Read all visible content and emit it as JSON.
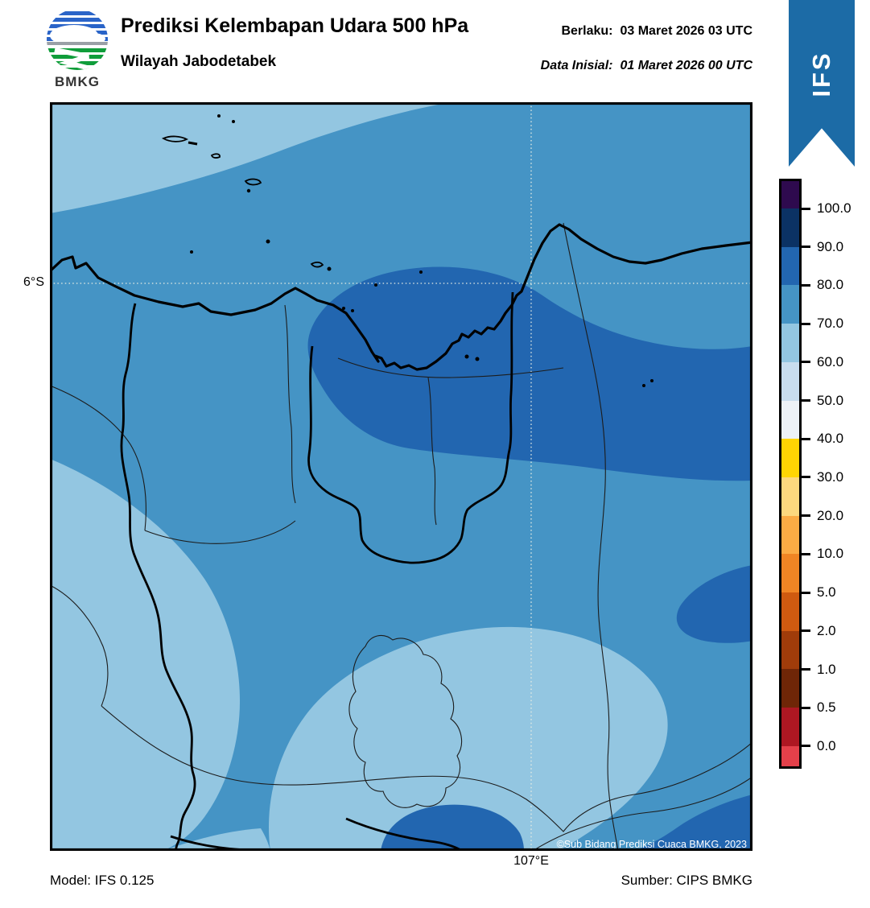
{
  "header": {
    "logo_text": "BMKG",
    "title": "Prediksi Kelembapan Udara 500 hPa",
    "subtitle": "Wilayah Jabodetabek",
    "valid_label": "Berlaku:",
    "valid_value": "03 Maret 2026 03 UTC",
    "init_label": "Data Inisial:",
    "init_value": "01 Maret 2026 00 UTC",
    "ribbon_tag": "IFS",
    "ribbon_color": "#1c6ba6"
  },
  "map": {
    "lat_label": "6°S",
    "lon_label": "107°E",
    "copyright": "©Sub Bidang Prediksi Cuaca BMKG, 2023",
    "bands_on_map": [
      {
        "range": "80-90",
        "color": "#2266b0"
      },
      {
        "range": "70-80",
        "color": "#4594c5"
      },
      {
        "range": "60-70",
        "color": "#93c6e1"
      }
    ]
  },
  "colorbar": {
    "tick_labels": [
      "100.0",
      "90.0",
      "80.0",
      "70.0",
      "60.0",
      "50.0",
      "40.0",
      "30.0",
      "20.0",
      "10.0",
      "5.0",
      "2.0",
      "1.0",
      "0.5",
      "0.0"
    ],
    "segments": [
      {
        "label": "gt-100",
        "color": "#2e0a4e"
      },
      {
        "label": "90-100",
        "color": "#0b3264"
      },
      {
        "label": "80-90",
        "color": "#2266b0"
      },
      {
        "label": "70-80",
        "color": "#4594c5"
      },
      {
        "label": "60-70",
        "color": "#93c6e1"
      },
      {
        "label": "50-60",
        "color": "#c8ddee"
      },
      {
        "label": "40-50",
        "color": "#edf2f7"
      },
      {
        "label": "30-40",
        "color": "#ffd503"
      },
      {
        "label": "20-30",
        "color": "#fcd87e"
      },
      {
        "label": "10-20",
        "color": "#fbab44"
      },
      {
        "label": "5-10",
        "color": "#f08524"
      },
      {
        "label": "2-5",
        "color": "#cf5a10"
      },
      {
        "label": "1-2",
        "color": "#a03c0a"
      },
      {
        "label": "0.5-1",
        "color": "#6f2607"
      },
      {
        "label": "0-0.5",
        "color": "#ae1722"
      },
      {
        "label": "lt-0",
        "color": "#e4404a"
      }
    ]
  },
  "footer": {
    "model": "Model: IFS 0.125",
    "source": "Sumber: CIPS BMKG"
  }
}
